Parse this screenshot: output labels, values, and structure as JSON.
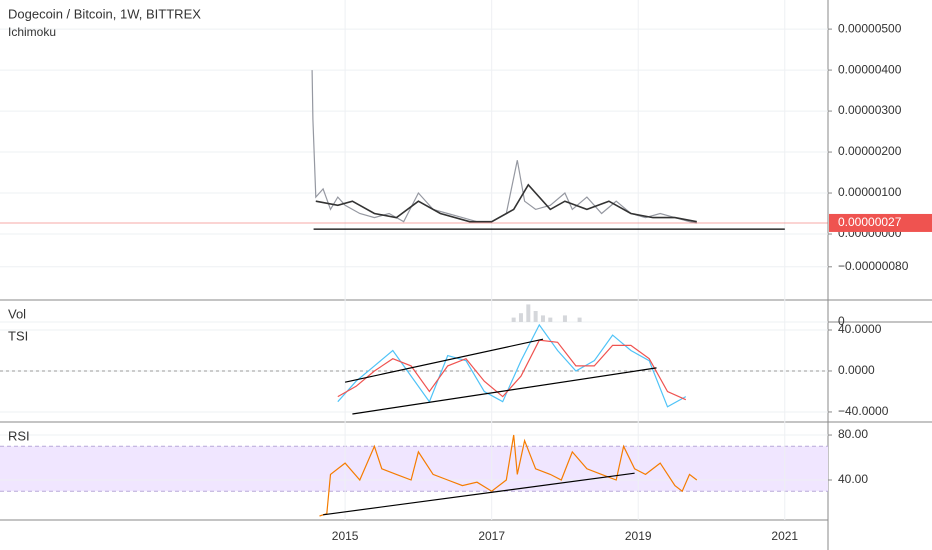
{
  "chart_data": [
    {
      "type": "line",
      "title": "Dogecoin / Bitcoin, 1W, BITTREX",
      "subtitle": "Ichimoku",
      "xlim": [
        2010.29,
        2021.59
      ],
      "ylim": [
        -1.61e-06,
        5.71e-06
      ],
      "yticks": [
        {
          "value": 5e-06,
          "label": "0.00000500"
        },
        {
          "value": 4e-06,
          "label": "0.00000400"
        },
        {
          "value": 3e-06,
          "label": "0.00000300"
        },
        {
          "value": 2e-06,
          "label": "0.00000200"
        },
        {
          "value": 1e-06,
          "label": "0.00000100"
        },
        {
          "value": 0,
          "label": "0.00000000"
        },
        {
          "value": -8e-07,
          "label": "−0.00000080"
        }
      ],
      "last_value": {
        "value": 2.7e-07,
        "label": "0.00000027",
        "color": "#ef5350"
      },
      "grid": true,
      "series": [
        {
          "color": "#9598a1",
          "x": [
            2014.55,
            2014.56,
            2014.6,
            2014.7,
            2014.8,
            2014.9,
            2015.0,
            2015.2,
            2015.4,
            2015.6,
            2015.8,
            2016.0,
            2016.2,
            2016.4,
            2016.6,
            2016.8,
            2017.0,
            2017.2,
            2017.35,
            2017.45,
            2017.6,
            2017.8,
            2018.0,
            2018.1,
            2018.3,
            2018.5,
            2018.7,
            2018.9,
            2019.1,
            2019.3,
            2019.5,
            2019.7,
            2019.8
          ],
          "values": [
            4e-06,
            2.8e-06,
            9e-07,
            1.1e-06,
            6e-07,
            9e-07,
            7e-07,
            5e-07,
            4e-07,
            5e-07,
            3e-07,
            1e-06,
            6e-07,
            5e-07,
            4e-07,
            3e-07,
            3e-07,
            5e-07,
            1.8e-06,
            8e-07,
            6e-07,
            7e-07,
            1e-06,
            6e-07,
            9e-07,
            5e-07,
            8e-07,
            5e-07,
            4e-07,
            5e-07,
            4e-07,
            3e-07,
            2.7e-07
          ]
        },
        {
          "color": "#333333",
          "x": [
            2014.6,
            2014.9,
            2015.1,
            2015.4,
            2015.7,
            2016.0,
            2016.3,
            2016.7,
            2017.0,
            2017.3,
            2017.5,
            2017.8,
            2018.0,
            2018.3,
            2018.6,
            2018.9,
            2019.2,
            2019.5,
            2019.8
          ],
          "values": [
            8e-07,
            7e-07,
            8e-07,
            5e-07,
            4e-07,
            8e-07,
            5e-07,
            3e-07,
            3e-07,
            6e-07,
            1.2e-06,
            6e-07,
            8e-07,
            6e-07,
            8e-07,
            5e-07,
            4e-07,
            4e-07,
            3e-07
          ]
        }
      ],
      "lines": [
        {
          "color": "#000000",
          "x": [
            2014.57,
            2021.0
          ],
          "values": [
            1.2e-07,
            1.2e-07
          ]
        }
      ]
    },
    {
      "type": "bar",
      "title": "Vol",
      "xlim": [
        2010.29,
        2021.59
      ],
      "ylim": [
        0,
        10
      ],
      "yticks": [
        0
      ],
      "color": "#d5d7db",
      "x": [
        2017.3,
        2017.4,
        2017.5,
        2017.6,
        2017.7,
        2017.8,
        2018.0,
        2018.2
      ],
      "values": [
        2,
        4,
        8,
        5,
        3,
        2,
        3,
        2
      ]
    },
    {
      "type": "line",
      "title": "TSI",
      "xlim": [
        2010.29,
        2021.59
      ],
      "ylim": [
        -49.8,
        47.8
      ],
      "yticks": [
        {
          "value": 40,
          "label": "40.0000"
        },
        {
          "value": 0,
          "label": "0.0000"
        },
        {
          "value": -40,
          "label": "−40.0000"
        }
      ],
      "hline": 0,
      "series": [
        {
          "color": "#4fc3f7",
          "x": [
            2014.9,
            2015.15,
            2015.4,
            2015.65,
            2015.9,
            2016.15,
            2016.4,
            2016.65,
            2016.9,
            2017.15,
            2017.4,
            2017.65,
            2017.9,
            2018.15,
            2018.4,
            2018.65,
            2018.9,
            2019.15,
            2019.4,
            2019.65
          ],
          "values": [
            -30,
            -10,
            5,
            20,
            -5,
            -30,
            15,
            10,
            -20,
            -30,
            10,
            45,
            20,
            0,
            10,
            35,
            20,
            10,
            -35,
            -25
          ]
        },
        {
          "color": "#ef5350",
          "x": [
            2014.9,
            2015.15,
            2015.4,
            2015.65,
            2015.9,
            2016.15,
            2016.4,
            2016.65,
            2016.9,
            2017.15,
            2017.4,
            2017.65,
            2017.9,
            2018.15,
            2018.4,
            2018.65,
            2018.9,
            2019.15,
            2019.4,
            2019.65
          ],
          "values": [
            -25,
            -15,
            0,
            12,
            5,
            -20,
            5,
            12,
            -10,
            -25,
            -5,
            30,
            28,
            5,
            5,
            25,
            25,
            12,
            -20,
            -28
          ]
        }
      ],
      "lines": [
        {
          "color": "#000000",
          "x": [
            2015.0,
            2017.7
          ],
          "values": [
            -11,
            31
          ]
        },
        {
          "color": "#000000",
          "x": [
            2015.1,
            2019.25
          ],
          "values": [
            -42,
            3
          ]
        }
      ]
    },
    {
      "type": "line",
      "title": "RSI",
      "xlim": [
        2010.29,
        2021.59
      ],
      "ylim": [
        4.4,
        91.6
      ],
      "yticks": [
        {
          "value": 80,
          "label": "80.00"
        },
        {
          "value": 40,
          "label": "40.00"
        }
      ],
      "xticks": [
        2015,
        2017,
        2019,
        2021
      ],
      "band": [
        30,
        70
      ],
      "series": [
        {
          "color": "#f57c00",
          "x": [
            2014.65,
            2014.75,
            2014.8,
            2015.0,
            2015.2,
            2015.4,
            2015.5,
            2015.7,
            2015.9,
            2016.0,
            2016.2,
            2016.4,
            2016.6,
            2016.8,
            2017.0,
            2017.2,
            2017.3,
            2017.35,
            2017.45,
            2017.6,
            2017.8,
            2017.95,
            2018.1,
            2018.3,
            2018.5,
            2018.7,
            2018.8,
            2018.95,
            2019.1,
            2019.3,
            2019.5,
            2019.6,
            2019.7,
            2019.8
          ],
          "values": [
            8,
            10,
            45,
            55,
            40,
            70,
            50,
            45,
            40,
            65,
            45,
            40,
            35,
            38,
            30,
            40,
            80,
            45,
            75,
            50,
            45,
            40,
            65,
            50,
            45,
            40,
            70,
            50,
            45,
            55,
            35,
            30,
            45,
            40
          ]
        }
      ],
      "lines": [
        {
          "color": "#000000",
          "x": [
            2014.7,
            2018.95
          ],
          "values": [
            9,
            46
          ]
        }
      ]
    }
  ]
}
